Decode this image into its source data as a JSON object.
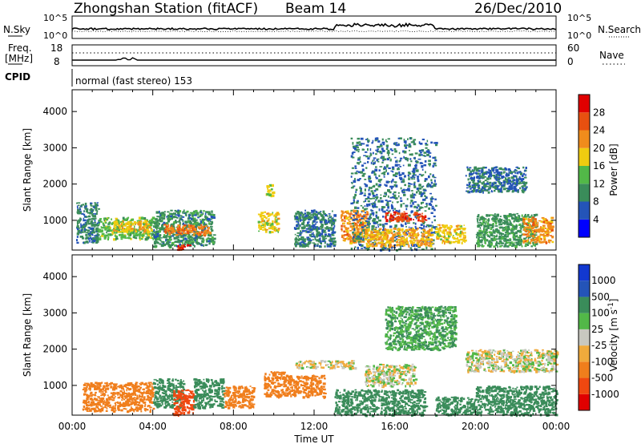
{
  "header": {
    "station": "Zhongshan Station (fitACF)",
    "beam": "Beam 14",
    "date": "26/Dec/2010"
  },
  "strips": {
    "nsky_label": "N.Sky",
    "nsearch_label": "N.Search",
    "nsky_ticks": [
      "10^5",
      "10^0"
    ],
    "freq_label": "Freq.",
    "freq_unit": "[MHz]",
    "freq_ticks": [
      "18",
      "8"
    ],
    "nave_label": "Nave",
    "nave_ticks": [
      "60",
      "0"
    ],
    "cpid_label": "CPID",
    "cpid_text": "normal (fast stereo) 153"
  },
  "colors": {
    "power_scale": [
      "#0000ff",
      "#2454b8",
      "#3a8c5a",
      "#52b848",
      "#f0cc10",
      "#f08c1c",
      "#e85010",
      "#e00000"
    ],
    "velocity_scale": [
      "#e00000",
      "#f04810",
      "#f07e1c",
      "#f0aa3c",
      "#c8c8c0",
      "#52b848",
      "#3a8c5a",
      "#2454b8",
      "#1238d0"
    ]
  },
  "chart_data": [
    {
      "type": "heatmap",
      "title": "Power",
      "ylabel": "Slant Range [km]",
      "xlabel": "Time UT",
      "x_ticks": [
        "00:00",
        "04:00",
        "08:00",
        "12:00",
        "16:00",
        "20:00",
        "00:00"
      ],
      "x_range_hours": [
        0,
        24
      ],
      "y_ticks": [
        1000,
        2000,
        3000,
        4000
      ],
      "ylim": [
        180,
        4600
      ],
      "colorbar": {
        "label": "Power [dB]",
        "ticks": [
          4,
          8,
          12,
          16,
          20,
          24,
          28
        ],
        "range": [
          0,
          32
        ]
      },
      "regions": [
        {
          "t0": 0.2,
          "t1": 1.3,
          "r0": 400,
          "r1": 1500,
          "v": 9
        },
        {
          "t0": 1.3,
          "t1": 4.2,
          "r0": 500,
          "r1": 1100,
          "v": 14
        },
        {
          "t0": 2.0,
          "t1": 3.8,
          "r0": 700,
          "r1": 1000,
          "v": 19
        },
        {
          "t0": 4.0,
          "t1": 7.0,
          "r0": 300,
          "r1": 1300,
          "v": 10
        },
        {
          "t0": 4.5,
          "t1": 6.8,
          "r0": 600,
          "r1": 900,
          "v": 23
        },
        {
          "t0": 5.2,
          "t1": 5.9,
          "r0": 200,
          "r1": 350,
          "v": 28
        },
        {
          "t0": 9.2,
          "t1": 10.2,
          "r0": 700,
          "r1": 1250,
          "v": 18
        },
        {
          "t0": 9.6,
          "t1": 10.0,
          "r0": 1700,
          "r1": 2000,
          "v": 17
        },
        {
          "t0": 11.0,
          "t1": 13.0,
          "r0": 300,
          "r1": 1300,
          "v": 9
        },
        {
          "t0": 13.3,
          "t1": 14.6,
          "r0": 400,
          "r1": 1300,
          "v": 22
        },
        {
          "t0": 13.8,
          "t1": 18.0,
          "r0": 200,
          "r1": 3300,
          "v": 8
        },
        {
          "t0": 14.5,
          "t1": 17.8,
          "r0": 300,
          "r1": 800,
          "v": 20
        },
        {
          "t0": 15.5,
          "t1": 17.5,
          "r0": 1000,
          "r1": 1250,
          "v": 27
        },
        {
          "t0": 18.0,
          "t1": 19.5,
          "r0": 400,
          "r1": 900,
          "v": 18
        },
        {
          "t0": 19.5,
          "t1": 22.5,
          "r0": 1800,
          "r1": 2500,
          "v": 8
        },
        {
          "t0": 20.0,
          "t1": 23.0,
          "r0": 300,
          "r1": 1200,
          "v": 11
        },
        {
          "t0": 22.3,
          "t1": 23.8,
          "r0": 400,
          "r1": 1100,
          "v": 22
        }
      ]
    },
    {
      "type": "heatmap",
      "title": "Velocity",
      "ylabel": "Slant Range [km]",
      "xlabel": "Time UT",
      "x_ticks": [
        "00:00",
        "04:00",
        "08:00",
        "12:00",
        "16:00",
        "20:00",
        "00:00"
      ],
      "x_range_hours": [
        0,
        24
      ],
      "y_ticks": [
        1000,
        2000,
        3000,
        4000
      ],
      "ylim": [
        180,
        4600
      ],
      "colorbar": {
        "label": "Velocity [m s^-1]",
        "ticks": [
          "1000",
          "500",
          "100",
          "25",
          "-25",
          "-100",
          "-500",
          "-1000"
        ]
      },
      "regions": [
        {
          "t0": 0.5,
          "t1": 4.0,
          "r0": 300,
          "r1": 1100,
          "v": -200
        },
        {
          "t0": 4.0,
          "t1": 5.5,
          "r0": 400,
          "r1": 1200,
          "v": 200
        },
        {
          "t0": 5.0,
          "t1": 6.0,
          "r0": 200,
          "r1": 900,
          "v": -800
        },
        {
          "t0": 6.0,
          "t1": 7.5,
          "r0": 400,
          "r1": 1200,
          "v": 200
        },
        {
          "t0": 7.5,
          "t1": 9.0,
          "r0": 400,
          "r1": 1000,
          "v": -200
        },
        {
          "t0": 9.5,
          "t1": 10.5,
          "r0": 700,
          "r1": 1400,
          "v": -200
        },
        {
          "t0": 10.5,
          "t1": 12.5,
          "r0": 700,
          "r1": 1300,
          "v": -200
        },
        {
          "t0": 11.0,
          "t1": 14.0,
          "r0": 1500,
          "r1": 1700,
          "v": 0
        },
        {
          "t0": 13.0,
          "t1": 17.5,
          "r0": 200,
          "r1": 900,
          "v": 200
        },
        {
          "t0": 14.5,
          "t1": 17.0,
          "r0": 1000,
          "r1": 1600,
          "v": 0
        },
        {
          "t0": 18.0,
          "t1": 20.0,
          "r0": 200,
          "r1": 700,
          "v": 200
        },
        {
          "t0": 19.5,
          "t1": 24.0,
          "r0": 1400,
          "r1": 2000,
          "v": 0
        },
        {
          "t0": 20.0,
          "t1": 24.0,
          "r0": 200,
          "r1": 1000,
          "v": 200
        },
        {
          "t0": 15.5,
          "t1": 19.0,
          "r0": 2000,
          "r1": 3200,
          "v": 100
        }
      ]
    }
  ]
}
